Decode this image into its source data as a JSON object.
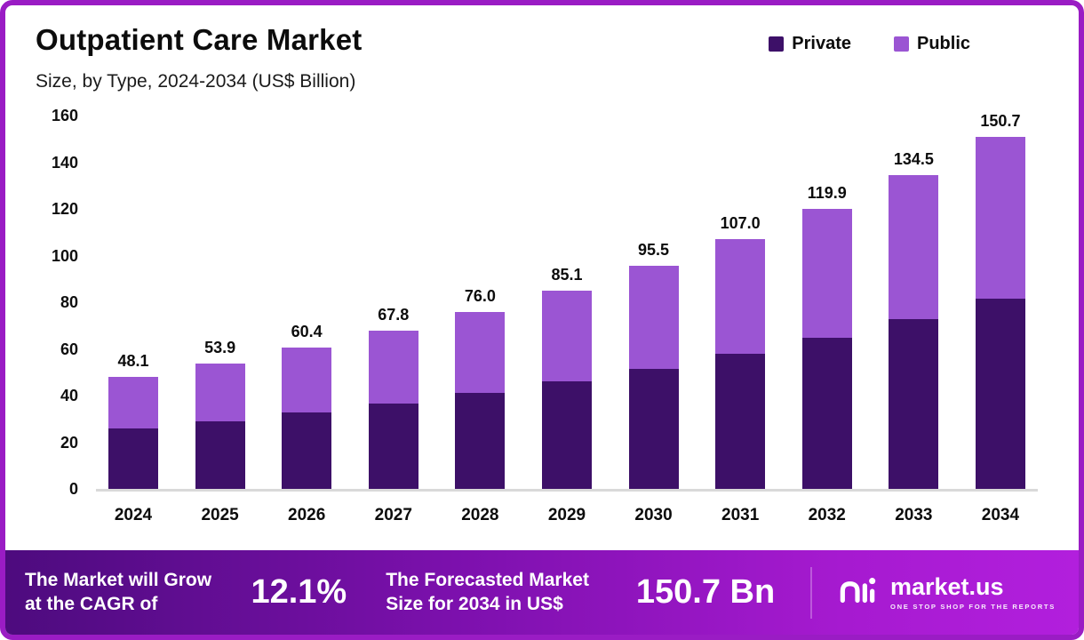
{
  "header": {
    "title": "Outpatient Care Market",
    "subtitle": "Size, by Type, 2024-2034 (US$ Billion)"
  },
  "legend": {
    "items": [
      {
        "label": "Private",
        "color": "#3d1068"
      },
      {
        "label": "Public",
        "color": "#9b55d3"
      }
    ]
  },
  "chart_data": {
    "type": "bar",
    "stacked": true,
    "title": "Outpatient Care Market",
    "subtitle": "Size, by Type, 2024-2034 (US$ Billion)",
    "categories": [
      "2024",
      "2025",
      "2026",
      "2027",
      "2028",
      "2029",
      "2030",
      "2031",
      "2032",
      "2033",
      "2034"
    ],
    "series": [
      {
        "name": "Private",
        "color": "#3d1068",
        "values": [
          26.0,
          29.1,
          32.6,
          36.6,
          41.0,
          46.0,
          51.6,
          57.8,
          64.7,
          72.6,
          81.4
        ]
      },
      {
        "name": "Public",
        "color": "#9b55d3",
        "values": [
          22.1,
          24.8,
          27.8,
          31.2,
          35.0,
          39.1,
          43.9,
          49.2,
          55.2,
          61.9,
          69.3
        ]
      }
    ],
    "totals": [
      48.1,
      53.9,
      60.4,
      67.8,
      76.0,
      85.1,
      95.5,
      107.0,
      119.9,
      134.5,
      150.7
    ],
    "total_labels": [
      "48.1",
      "53.9",
      "60.4",
      "67.8",
      "76.0",
      "85.1",
      "95.5",
      "107.0",
      "119.9",
      "134.5",
      "150.7"
    ],
    "xlabel": "",
    "ylabel": "",
    "ylim": [
      0,
      160
    ],
    "yticks": [
      0,
      20,
      40,
      60,
      80,
      100,
      120,
      140,
      160
    ],
    "grid": false,
    "legend_position": "top-right"
  },
  "banner": {
    "cagr_label": "The Market will Grow at the CAGR of",
    "cagr_value": "12.1%",
    "forecast_label": "The Forecasted Market Size for 2034 in US$",
    "forecast_value": "150.7 Bn",
    "brand_name": "market.us",
    "brand_tagline": "ONE STOP SHOP FOR THE REPORTS"
  },
  "colors": {
    "private": "#3d1068",
    "public": "#9b55d3",
    "page_border": "#9a1cc4",
    "banner_gradient_start": "#4d0b7e",
    "banner_gradient_end": "#b21fdd"
  }
}
